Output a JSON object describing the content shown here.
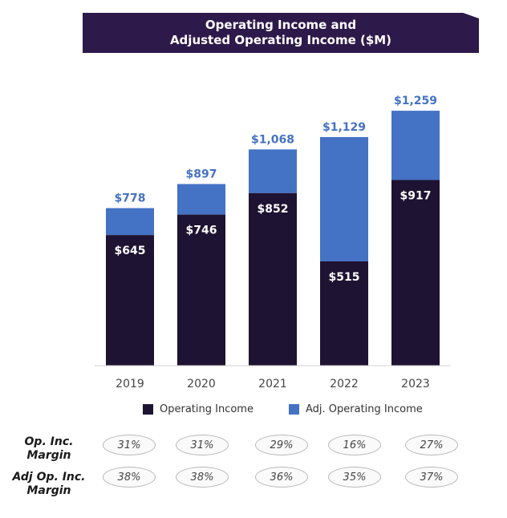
{
  "title": {
    "line1": "Operating Income and",
    "line2": "Adjusted Operating Income ($M)"
  },
  "colors": {
    "banner": "#2e1a4a",
    "operating_income": "#1e1332",
    "adj_operating_income": "#4472c4",
    "total_label": "#4472c4"
  },
  "chart_data": {
    "type": "bar",
    "stacked": true,
    "categories": [
      "2019",
      "2020",
      "2021",
      "2022",
      "2023"
    ],
    "series": [
      {
        "name": "Operating Income",
        "values": [
          645,
          746,
          852,
          515,
          917
        ],
        "labels": [
          "$645",
          "$746",
          "$852",
          "$515",
          "$917"
        ]
      },
      {
        "name": "Adj. Operating Income",
        "totals": [
          778,
          897,
          1068,
          1129,
          1259
        ],
        "labels": [
          "$778",
          "$897",
          "$1,068",
          "$1,129",
          "$1,259"
        ]
      }
    ],
    "legend_position": "bottom",
    "grid": false
  },
  "margins": {
    "op_label": [
      "Op. Inc.",
      "Margin"
    ],
    "adj_label": [
      "Adj Op. Inc.",
      "Margin"
    ],
    "op": [
      "31%",
      "31%",
      "29%",
      "16%",
      "27%"
    ],
    "adj": [
      "38%",
      "38%",
      "36%",
      "35%",
      "37%"
    ]
  }
}
